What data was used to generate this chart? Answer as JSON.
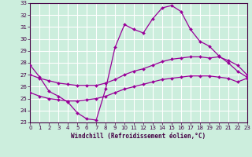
{
  "xlabel": "Windchill (Refroidissement éolien,°C)",
  "bg_color": "#cceedd",
  "grid_color": "#ffffff",
  "line_color": "#990099",
  "ylim": [
    23,
    33
  ],
  "xlim": [
    0,
    23
  ],
  "yticks": [
    23,
    24,
    25,
    26,
    27,
    28,
    29,
    30,
    31,
    32,
    33
  ],
  "xticks": [
    0,
    1,
    2,
    3,
    4,
    5,
    6,
    7,
    8,
    9,
    10,
    11,
    12,
    13,
    14,
    15,
    16,
    17,
    18,
    19,
    20,
    21,
    22,
    23
  ],
  "line1_x": [
    0,
    1,
    2,
    3,
    4,
    5,
    6,
    7,
    8,
    9,
    10,
    11,
    12,
    13,
    14,
    15,
    16,
    17,
    18,
    19,
    20,
    21,
    22,
    23
  ],
  "line1_y": [
    27.8,
    26.8,
    25.6,
    25.2,
    24.7,
    23.8,
    23.3,
    23.2,
    25.8,
    29.3,
    31.2,
    30.8,
    30.5,
    31.7,
    32.6,
    32.8,
    32.3,
    30.8,
    29.8,
    29.4,
    28.6,
    28.0,
    27.3,
    26.8
  ],
  "line2_x": [
    0,
    1,
    2,
    3,
    4,
    5,
    6,
    7,
    8,
    9,
    10,
    11,
    12,
    13,
    14,
    15,
    16,
    17,
    18,
    19,
    20,
    21,
    22,
    23
  ],
  "line2_y": [
    27.0,
    26.7,
    26.5,
    26.3,
    26.2,
    26.1,
    26.1,
    26.1,
    26.3,
    26.6,
    27.0,
    27.3,
    27.5,
    27.8,
    28.1,
    28.3,
    28.4,
    28.5,
    28.5,
    28.4,
    28.5,
    28.2,
    27.8,
    27.0
  ],
  "line3_x": [
    0,
    1,
    2,
    3,
    4,
    5,
    6,
    7,
    8,
    9,
    10,
    11,
    12,
    13,
    14,
    15,
    16,
    17,
    18,
    19,
    20,
    21,
    22,
    23
  ],
  "line3_y": [
    25.5,
    25.2,
    25.0,
    24.9,
    24.8,
    24.8,
    24.9,
    25.0,
    25.2,
    25.5,
    25.8,
    26.0,
    26.2,
    26.4,
    26.6,
    26.7,
    26.8,
    26.9,
    26.9,
    26.9,
    26.8,
    26.7,
    26.4,
    26.7
  ],
  "spine_color": "#440044",
  "tick_color": "#440044",
  "xlabel_fontsize": 5.5,
  "tick_fontsize": 5.0
}
